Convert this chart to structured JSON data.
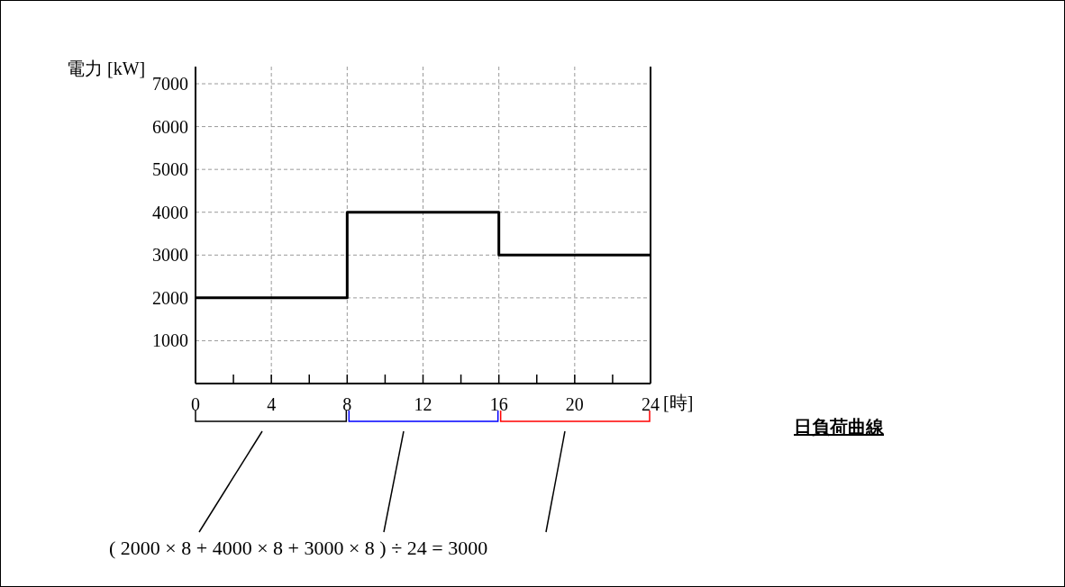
{
  "chart_data": {
    "type": "step",
    "x": [
      0,
      8,
      16,
      24
    ],
    "values": [
      2000,
      4000,
      3000,
      3000
    ],
    "color": "#000000",
    "xlim": [
      0,
      24
    ],
    "ylim": [
      0,
      7400
    ],
    "xticks": [
      0,
      {
        "value": 2,
        "label": null
      },
      4,
      {
        "value": 6,
        "label": null
      },
      8,
      {
        "value": 10,
        "label": null
      },
      12,
      {
        "value": 14,
        "label": null
      },
      16,
      {
        "value": 18,
        "label": null
      },
      20,
      {
        "value": 22,
        "label": null
      },
      24
    ],
    "yticks": [
      1000,
      2000,
      3000,
      4000,
      5000,
      6000,
      7000
    ],
    "xlabel": "[時]",
    "ylabel": "電力 [kW]",
    "grid": true,
    "annotations": [
      "日負荷曲線",
      "( 2000 × 8 + 4000 × 8 + 3000 × 8 ) ÷ 24 = 3000"
    ]
  }
}
